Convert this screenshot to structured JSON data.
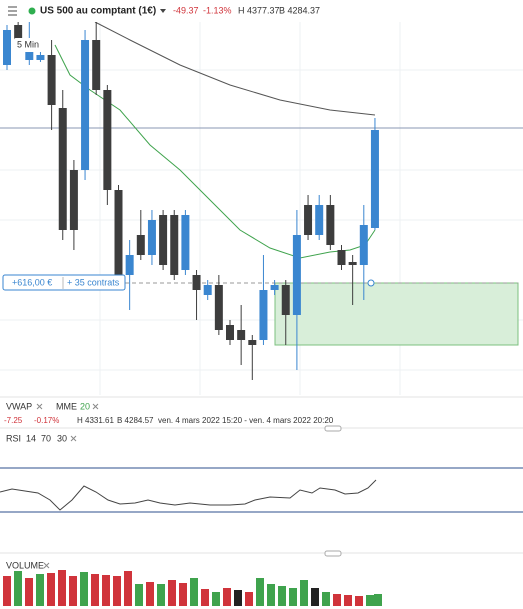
{
  "header": {
    "symbol": "US 500 au comptant (1€)",
    "change": "-49.37",
    "change_pct": "-1.13%",
    "high": "H 4377.37",
    "low": "B 4284.37"
  },
  "timeframe": "5 Min",
  "position": {
    "pnl": "+616,00 €",
    "size": "+ 35 contrats"
  },
  "indicators": {
    "vwap": "VWAP",
    "mme": "MME",
    "mme_period": "20"
  },
  "info": {
    "change": "-7.25",
    "change_pct": "-0.17%",
    "high": "H 4331.61",
    "low": "B 4284.57",
    "range": "ven. 4 mars 2022 15:20 - ven. 4 mars 2022 20:20"
  },
  "rsi": {
    "label": "RSI",
    "period": "14",
    "upper": "70",
    "lower": "30"
  },
  "volume": {
    "label": "VOLUME"
  },
  "chart": {
    "type": "candlestick",
    "ylim": [
      4302.5,
      4395
    ],
    "up_color": "#3a86d0",
    "down_color": "#3d3d3d",
    "candles": [
      {
        "open": 4383.75,
        "high": 4393.75,
        "low": 4382.5,
        "close": 4392.5
      },
      {
        "open": 4393.75,
        "high": 4395,
        "low": 4389.5,
        "close": 4390
      },
      {
        "open": 4385,
        "high": 4395,
        "low": 4383.75,
        "close": 4390.5
      },
      {
        "open": 4385,
        "high": 4387,
        "low": 4384.5,
        "close": 4386.25
      },
      {
        "open": 4386.25,
        "high": 4390,
        "low": 4367.5,
        "close": 4373.75
      },
      {
        "open": 4373,
        "high": 4377.5,
        "low": 4340,
        "close": 4342.5
      },
      {
        "open": 4357.5,
        "high": 4360,
        "low": 4337.5,
        "close": 4342.5
      },
      {
        "open": 4357.5,
        "high": 4392.5,
        "low": 4355,
        "close": 4390
      },
      {
        "open": 4390,
        "high": 4395,
        "low": 4376.25,
        "close": 4377.5
      },
      {
        "open": 4377.5,
        "high": 4378.75,
        "low": 4348.75,
        "close": 4352.5
      },
      {
        "open": 4352.5,
        "high": 4353.75,
        "low": 4330,
        "close": 4331.25
      },
      {
        "open": 4331.25,
        "high": 4340,
        "low": 4322.5,
        "close": 4336.25
      },
      {
        "open": 4341.25,
        "high": 4347.5,
        "low": 4335,
        "close": 4336.25
      },
      {
        "open": 4336.25,
        "high": 4347.5,
        "low": 4333.75,
        "close": 4345
      },
      {
        "open": 4346.25,
        "high": 4347.5,
        "low": 4332.5,
        "close": 4333.75
      },
      {
        "open": 4346.25,
        "high": 4347.5,
        "low": 4330,
        "close": 4331.25
      },
      {
        "open": 4332.5,
        "high": 4347.5,
        "low": 4331.25,
        "close": 4346.25
      },
      {
        "open": 4331.25,
        "high": 4332.5,
        "low": 4320,
        "close": 4327.5
      },
      {
        "open": 4326.25,
        "high": 4330,
        "low": 4325,
        "close": 4328.75
      },
      {
        "open": 4328.75,
        "high": 4331.25,
        "low": 4316.25,
        "close": 4317.5
      },
      {
        "open": 4318.75,
        "high": 4320,
        "low": 4313.75,
        "close": 4315
      },
      {
        "open": 4317.5,
        "high": 4323.75,
        "low": 4308.75,
        "close": 4315
      },
      {
        "open": 4315,
        "high": 4316.25,
        "low": 4305,
        "close": 4313.75
      },
      {
        "open": 4315,
        "high": 4336.25,
        "low": 4313.75,
        "close": 4327.5
      },
      {
        "open": 4327.5,
        "high": 4330,
        "low": 4326.25,
        "close": 4328.75
      },
      {
        "open": 4328.75,
        "high": 4330,
        "low": 4313.75,
        "close": 4321.25
      },
      {
        "open": 4321.25,
        "high": 4347.5,
        "low": 4307.5,
        "close": 4341.25
      },
      {
        "open": 4348.75,
        "high": 4351.25,
        "low": 4340,
        "close": 4341.25
      },
      {
        "open": 4341.25,
        "high": 4351.25,
        "low": 4340,
        "close": 4348.75
      },
      {
        "open": 4348.75,
        "high": 4351.25,
        "low": 4337.5,
        "close": 4338.75
      },
      {
        "open": 4337.5,
        "high": 4338.75,
        "low": 4332.5,
        "close": 4333.75
      },
      {
        "open": 4334.5,
        "high": 4336.25,
        "low": 4323.75,
        "close": 4333.75
      },
      {
        "open": 4333.75,
        "high": 4348.75,
        "low": 4325,
        "close": 4343.75
      },
      {
        "open": 4343,
        "high": 4370.5,
        "low": 4342.5,
        "close": 4367.5
      }
    ]
  }
}
